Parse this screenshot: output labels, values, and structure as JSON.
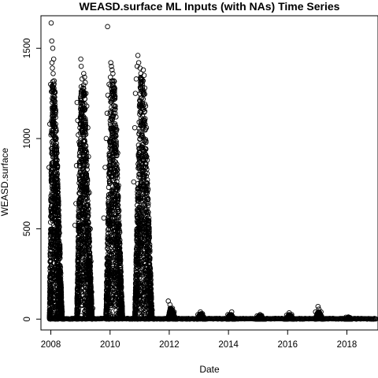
{
  "chart_data": {
    "type": "scatter",
    "title": "WEASD.surface ML Inputs (with NAs) Time Series",
    "xlabel": "Date",
    "ylabel": "WEASD.surface",
    "xlim": [
      "2007-09-01",
      "2019-01-20"
    ],
    "ylim": [
      -60,
      1680
    ],
    "x_ticks": [
      "2008",
      "2010",
      "2012",
      "2014",
      "2016",
      "2018"
    ],
    "y_ticks": [
      "0",
      "500",
      "1000",
      "1500"
    ],
    "marker": "open-circle",
    "grid": false,
    "legend": "none",
    "series": [
      {
        "points": [
          [
            "2008-01-05",
            1640
          ],
          [
            "2008-01-12",
            1540
          ],
          [
            "2008-01-25",
            1500
          ],
          [
            "2008-02-05",
            1440
          ],
          [
            "2008-01-15",
            1420
          ],
          [
            "2008-01-20",
            1390
          ],
          [
            "2008-01-30",
            1360
          ],
          [
            "2008-02-10",
            1320
          ],
          [
            "2007-12-30",
            1300
          ],
          [
            "2008-01-08",
            1260
          ],
          [
            "2008-01-18",
            1200
          ],
          [
            "2008-02-18",
            1150
          ],
          [
            "2007-12-20",
            1080
          ],
          [
            "2008-01-02",
            1020
          ],
          [
            "2008-02-25",
            960
          ],
          [
            "2008-03-05",
            900
          ],
          [
            "2007-12-10",
            840
          ],
          [
            "2008-03-12",
            780
          ],
          [
            "2008-03-20",
            700
          ],
          [
            "2008-03-30",
            620
          ],
          [
            "2008-04-05",
            560
          ],
          [
            "2008-04-12",
            480
          ],
          [
            "2008-04-20",
            380
          ],
          [
            "2008-04-28",
            270
          ],
          [
            "2008-05-05",
            170
          ],
          [
            "2008-05-12",
            90
          ],
          [
            "2008-05-20",
            40
          ],
          [
            "2008-11-20",
            1200
          ],
          [
            "2008-11-28",
            1100
          ],
          [
            "2008-12-05",
            1020
          ],
          [
            "2008-12-15",
            980
          ],
          [
            "2008-12-25",
            1060
          ],
          [
            "2009-01-05",
            1440
          ],
          [
            "2009-01-10",
            1400
          ],
          [
            "2009-01-20",
            1330
          ],
          [
            "2009-02-01",
            1280
          ],
          [
            "2009-02-10",
            1360
          ],
          [
            "2009-02-20",
            1340
          ],
          [
            "2009-03-01",
            1310
          ],
          [
            "2009-03-10",
            1250
          ],
          [
            "2009-03-20",
            1180
          ],
          [
            "2009-04-01",
            1060
          ],
          [
            "2009-04-10",
            900
          ],
          [
            "2009-04-20",
            700
          ],
          [
            "2009-05-01",
            500
          ],
          [
            "2009-05-10",
            320
          ],
          [
            "2009-05-20",
            150
          ],
          [
            "2008-11-05",
            640
          ],
          [
            "2008-11-12",
            850
          ],
          [
            "2008-10-25",
            520
          ],
          [
            "2009-06-01",
            60
          ],
          [
            "2009-10-15",
            560
          ],
          [
            "2009-11-01",
            840
          ],
          [
            "2009-11-15",
            1000
          ],
          [
            "2009-11-25",
            1140
          ],
          [
            "2009-12-05",
            1240
          ],
          [
            "2009-12-01",
            1620
          ],
          [
            "2009-12-20",
            1300
          ],
          [
            "2010-01-05",
            1340
          ],
          [
            "2010-01-10",
            1420
          ],
          [
            "2010-01-18",
            1400
          ],
          [
            "2010-01-25",
            1380
          ],
          [
            "2010-02-05",
            1360
          ],
          [
            "2010-02-15",
            1320
          ],
          [
            "2010-02-25",
            1250
          ],
          [
            "2010-03-05",
            1180
          ],
          [
            "2010-03-15",
            1120
          ],
          [
            "2010-03-25",
            1050
          ],
          [
            "2010-04-05",
            920
          ],
          [
            "2010-04-15",
            740
          ],
          [
            "2010-04-22",
            600
          ],
          [
            "2010-05-01",
            480
          ],
          [
            "2010-05-10",
            330
          ],
          [
            "2010-05-20",
            180
          ],
          [
            "2010-06-01",
            70
          ],
          [
            "2010-10-20",
            760
          ],
          [
            "2010-11-01",
            1060
          ],
          [
            "2010-11-10",
            1250
          ],
          [
            "2010-11-20",
            1330
          ],
          [
            "2010-12-01",
            1400
          ],
          [
            "2010-12-10",
            1460
          ],
          [
            "2010-12-20",
            1420
          ],
          [
            "2011-01-05",
            1390
          ],
          [
            "2011-01-15",
            1360
          ],
          [
            "2011-01-25",
            1330
          ],
          [
            "2011-02-05",
            1300
          ],
          [
            "2011-02-15",
            1380
          ],
          [
            "2011-02-25",
            1350
          ],
          [
            "2011-03-05",
            1280
          ],
          [
            "2011-03-15",
            1180
          ],
          [
            "2011-03-25",
            1060
          ],
          [
            "2011-04-05",
            880
          ],
          [
            "2011-04-15",
            720
          ],
          [
            "2011-04-25",
            560
          ],
          [
            "2011-05-05",
            400
          ],
          [
            "2011-05-15",
            240
          ],
          [
            "2011-05-25",
            110
          ],
          [
            "2011-06-05",
            50
          ],
          [
            "2011-12-20",
            100
          ],
          [
            "2012-01-10",
            80
          ],
          [
            "2012-02-10",
            60
          ],
          [
            "2012-03-01",
            40
          ],
          [
            "2012-12-20",
            25
          ],
          [
            "2013-01-20",
            40
          ],
          [
            "2013-02-15",
            30
          ],
          [
            "2013-12-25",
            25
          ],
          [
            "2014-01-20",
            20
          ],
          [
            "2014-02-10",
            40
          ],
          [
            "2014-12-20",
            18
          ],
          [
            "2015-01-25",
            25
          ],
          [
            "2015-02-15",
            20
          ],
          [
            "2015-12-20",
            22
          ],
          [
            "2016-01-20",
            35
          ],
          [
            "2016-02-20",
            25
          ],
          [
            "2016-12-10",
            40
          ],
          [
            "2017-01-10",
            70
          ],
          [
            "2017-01-20",
            55
          ],
          [
            "2017-02-15",
            40
          ],
          [
            "2017-12-20",
            10
          ],
          [
            "2018-01-20",
            12
          ],
          [
            "2018-02-10",
            8
          ]
        ]
      }
    ],
    "dense_band": {
      "description_free": true,
      "seasons": [
        {
          "start": "2007-12-15",
          "peak": "2008-01-25",
          "end": "2008-05-20",
          "max": 1320
        },
        {
          "start": "2008-11-15",
          "peak": "2009-01-20",
          "end": "2009-05-25",
          "max": 1300
        },
        {
          "start": "2009-11-10",
          "peak": "2010-01-25",
          "end": "2010-06-05",
          "max": 1320
        },
        {
          "start": "2010-11-01",
          "peak": "2011-01-25",
          "end": "2011-06-05",
          "max": 1350
        },
        {
          "start": "2011-12-15",
          "peak": "2012-01-20",
          "end": "2012-03-20",
          "max": 60
        },
        {
          "start": "2012-12-10",
          "peak": "2013-01-25",
          "end": "2013-03-15",
          "max": 30
        },
        {
          "start": "2013-12-10",
          "peak": "2014-01-25",
          "end": "2014-03-15",
          "max": 25
        },
        {
          "start": "2014-12-10",
          "peak": "2015-01-25",
          "end": "2015-03-15",
          "max": 20
        },
        {
          "start": "2015-12-10",
          "peak": "2016-01-25",
          "end": "2016-03-15",
          "max": 25
        },
        {
          "start": "2016-12-05",
          "peak": "2017-01-15",
          "end": "2017-03-10",
          "max": 40
        },
        {
          "start": "2017-12-10",
          "peak": "2018-01-20",
          "end": "2018-03-01",
          "max": 8
        }
      ],
      "baseline": 0
    }
  }
}
